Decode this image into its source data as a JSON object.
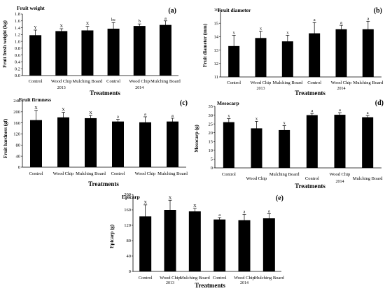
{
  "chart_data": [
    {
      "id": "a",
      "type": "bar",
      "title": "Fruit weight",
      "panel_label": "(a)",
      "ylabel": "Fruit fresh weight (kg)",
      "xlabel": "Treatments",
      "ylim": [
        0,
        1.8
      ],
      "yticks": [
        0,
        0.2,
        0.4,
        0.6,
        0.8,
        1,
        1.2,
        1.4,
        1.6,
        1.8
      ],
      "ytick_labels": [
        "0.0",
        "0.2",
        "0.4",
        "0.6",
        "0.8",
        "1.0",
        "1.2",
        "1.4",
        "1.6",
        "1.8"
      ],
      "categories": [
        "Control",
        "Wood Chip",
        "Mulching Board",
        "Control",
        "Wood Chip",
        "Mulching Board"
      ],
      "groups": [
        {
          "label": "2013",
          "from": 0,
          "to": 2
        },
        {
          "label": "2014",
          "from": 3,
          "to": 5
        }
      ],
      "values": [
        1.18,
        1.3,
        1.32,
        1.37,
        1.45,
        1.48
      ],
      "errors": [
        0.15,
        0.07,
        0.12,
        0.18,
        0.06,
        0.12
      ],
      "letters": [
        "Y",
        "X",
        "X",
        "bc",
        "b",
        "a"
      ],
      "grid": false
    },
    {
      "id": "b",
      "type": "bar",
      "title": "Fruit diameter",
      "panel_label": "(b)",
      "ylabel": "Fruit diameter (mm)",
      "xlabel": "Treatments",
      "ylim": [
        11,
        16
      ],
      "yticks": [
        11,
        12,
        13,
        14,
        15,
        16
      ],
      "ytick_labels": [
        "11",
        "12",
        "13",
        "14",
        "15",
        "16"
      ],
      "categories": [
        "Control",
        "Wood Chip",
        "Mulching Board",
        "Control",
        "Wood Chip",
        "Mulching Board"
      ],
      "groups": [
        {
          "label": "2013",
          "from": 0,
          "to": 2
        },
        {
          "label": "2014",
          "from": 3,
          "to": 5
        }
      ],
      "values": [
        13.3,
        13.9,
        13.65,
        14.25,
        14.55,
        14.55
      ],
      "errors": [
        0.8,
        0.5,
        0.45,
        0.8,
        0.3,
        0.6
      ],
      "letters": [
        "x",
        "x",
        "x",
        "a",
        "a",
        "a"
      ],
      "grid": false
    },
    {
      "id": "c",
      "type": "bar",
      "title": "Fruit firmness",
      "panel_label": "(c)",
      "ylabel": "Fruit hardness (gf)",
      "xlabel": "Treatments",
      "ylim": [
        0,
        240
      ],
      "yticks": [
        0,
        40,
        80,
        120,
        160,
        200,
        240
      ],
      "ytick_labels": [
        "0",
        "40",
        "80",
        "120",
        "160",
        "200",
        "240"
      ],
      "categories": [
        "Control",
        "Wood Chip",
        "Mulching Board",
        "Control",
        "Wood Chip",
        "Mulching Board"
      ],
      "groups": [],
      "values": [
        170,
        180,
        177,
        165,
        162,
        165
      ],
      "errors": [
        35,
        18,
        10,
        8,
        20,
        12
      ],
      "letters": [
        "X",
        "X",
        "X",
        "a",
        "a",
        "a"
      ],
      "grid": false
    },
    {
      "id": "d",
      "type": "bar",
      "title": "Mesocarp",
      "panel_label": "(d)",
      "ylabel": "Mesocarp (g)",
      "xlabel": "Treatments",
      "ylim": [
        0,
        35
      ],
      "yticks": [
        0,
        5,
        10,
        15,
        20,
        25,
        30,
        35
      ],
      "ytick_labels": [
        "0",
        "5",
        "10",
        "15",
        "20",
        "25",
        "30",
        "35"
      ],
      "categories": [
        "Control",
        "Wood Chip",
        "Mulching Board",
        "Control",
        "Wood Chip",
        "Mulching Board"
      ],
      "groups": [
        {
          "label": "2014",
          "from": 3,
          "to": 5
        }
      ],
      "values": [
        26,
        22.5,
        21.5,
        30,
        30.2,
        28.8
      ],
      "errors": [
        2,
        4,
        2.5,
        1,
        1.2,
        1
      ],
      "letters": [
        "x",
        "x",
        "x",
        "a",
        "a",
        "a"
      ],
      "grid": false
    },
    {
      "id": "e",
      "type": "bar",
      "title": "Epicarp",
      "panel_label": "(e)",
      "ylabel": "Epicarp (g)",
      "xlabel": "Treatments",
      "ylim": [
        0,
        200
      ],
      "yticks": [
        0,
        40,
        80,
        120,
        160,
        200
      ],
      "ytick_labels": [
        "0",
        "40",
        "80",
        "120",
        "160",
        "200"
      ],
      "categories": [
        "Control",
        "Wood Chip",
        "Mulching Board",
        "Control",
        "Wood Chip",
        "Mulching Board"
      ],
      "groups": [
        {
          "label": "2013",
          "from": 0,
          "to": 2
        },
        {
          "label": "2014",
          "from": 3,
          "to": 5
        }
      ],
      "values": [
        143,
        160,
        156,
        135,
        133,
        138
      ],
      "errors": [
        30,
        25,
        8,
        5,
        15,
        12
      ],
      "letters": [
        "X",
        "X",
        "X",
        "a",
        "a",
        "a"
      ],
      "grid": false
    }
  ],
  "colors": {
    "bar": "#000000",
    "axis": "#000000",
    "background": "#ffffff"
  }
}
